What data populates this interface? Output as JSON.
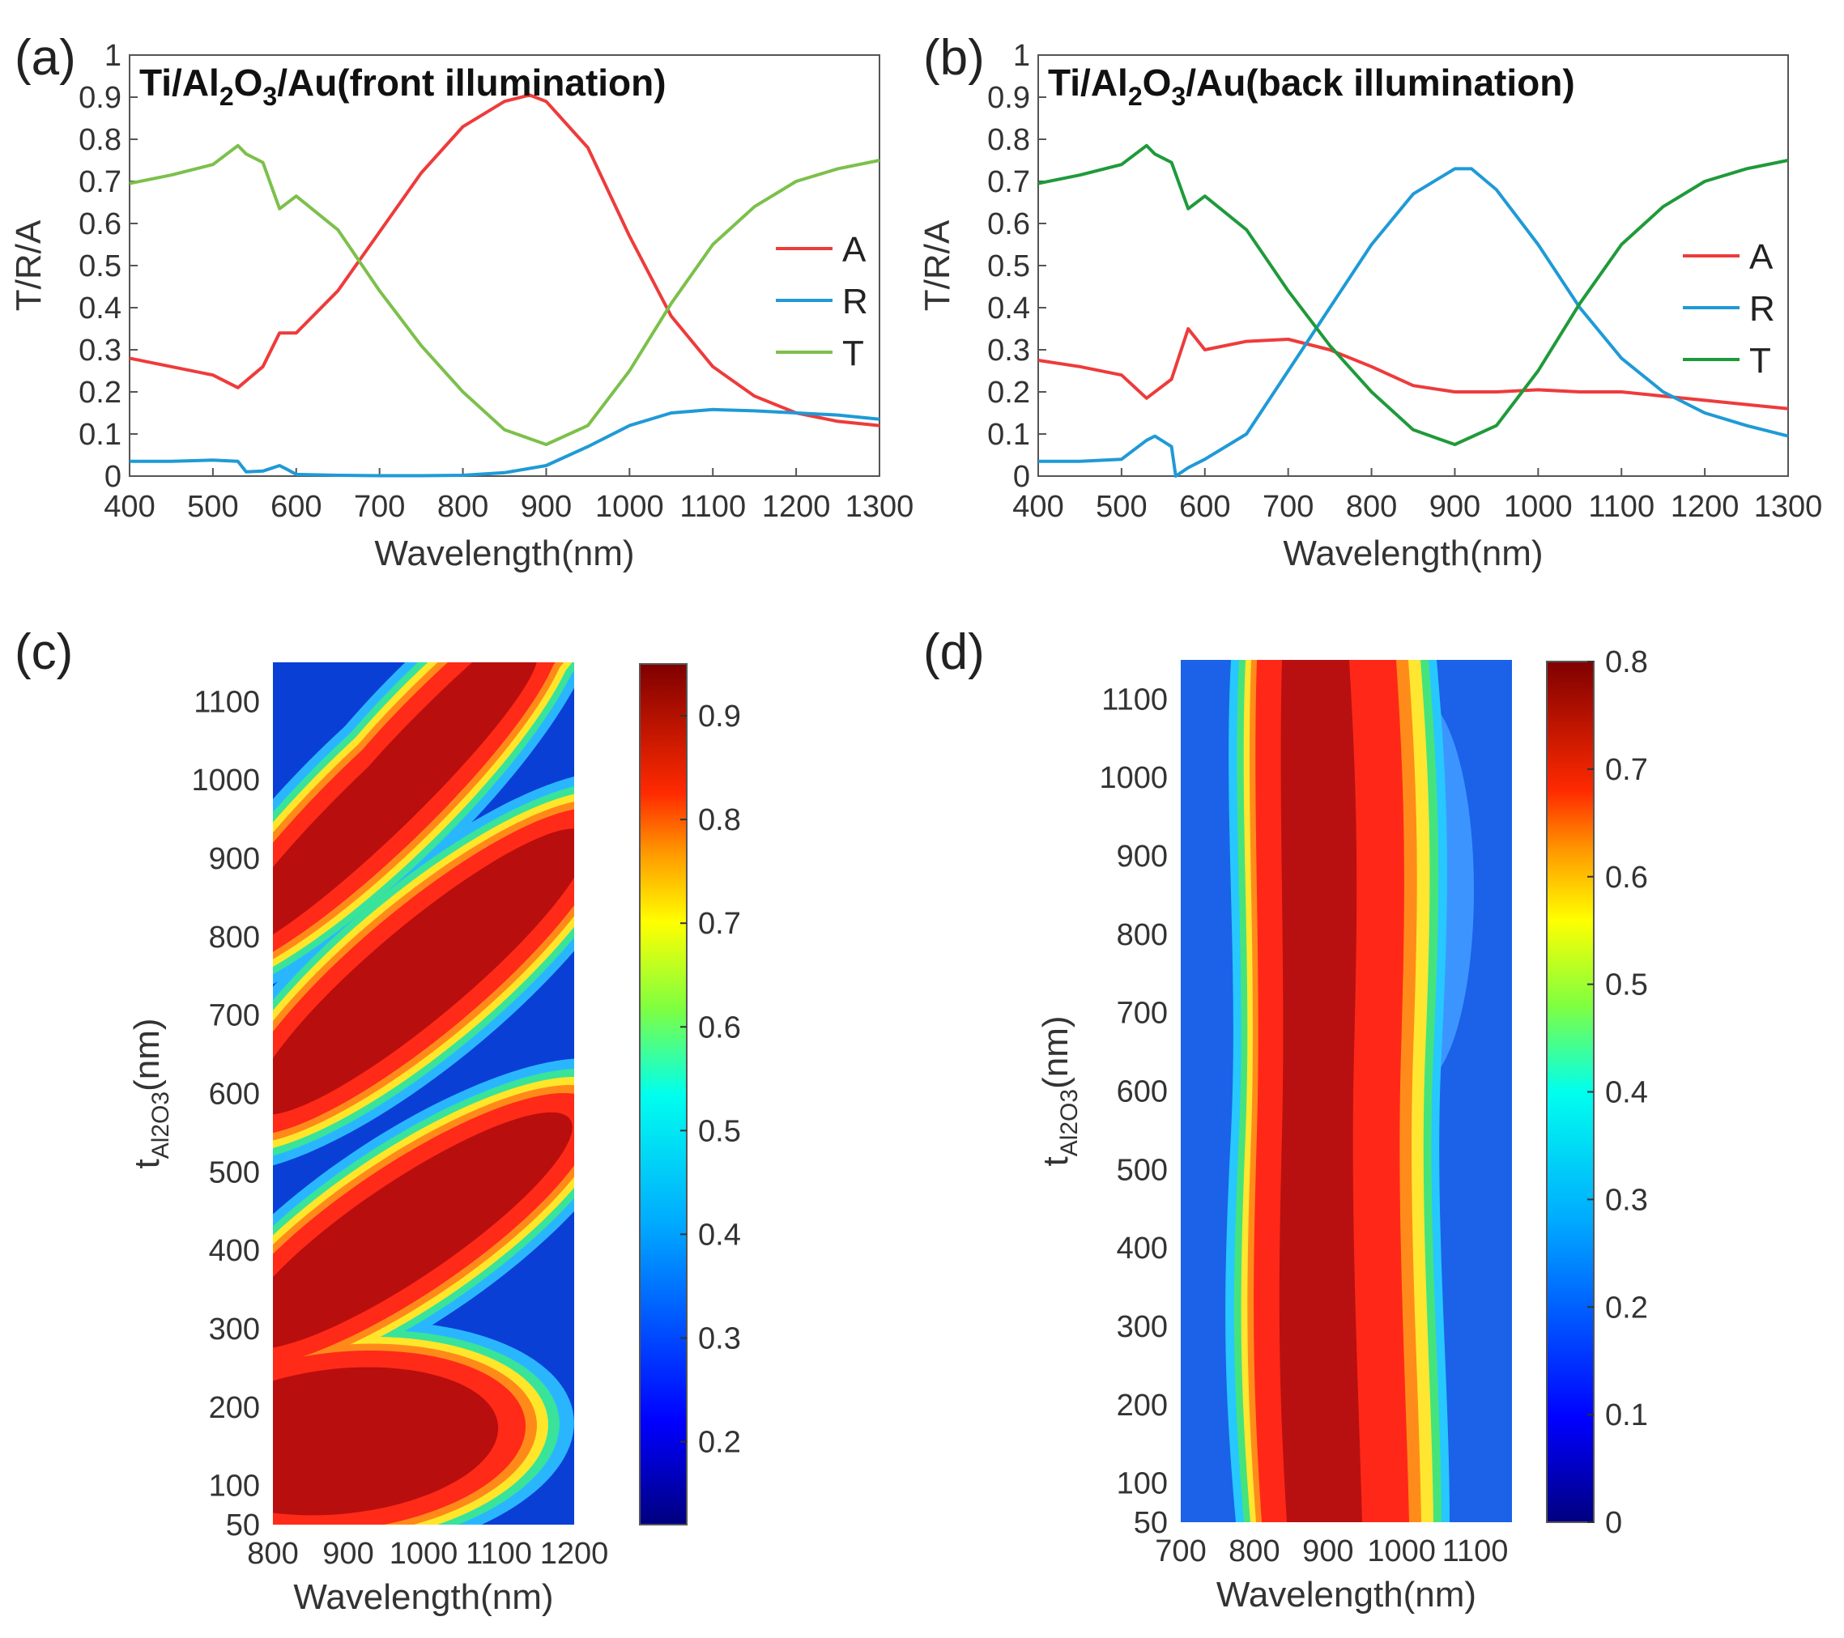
{
  "chart_data": [
    {
      "panel": "(a)",
      "type": "line",
      "title": "Ti/Al2O3/Au(front illumination)",
      "title_parts": {
        "p1": "Ti/Al",
        "s1": "2",
        "p2": "O",
        "s2": "3",
        "p3": "/Au(front illumination)"
      },
      "xlabel": "Wavelength(nm)",
      "ylabel": "T/R/A",
      "xlim": [
        400,
        1300
      ],
      "ylim": [
        0,
        1
      ],
      "xticks": [
        "400",
        "500",
        "600",
        "700",
        "800",
        "900",
        "1000",
        "1100",
        "1200",
        "1300"
      ],
      "yticks": [
        "0",
        "0.1",
        "0.2",
        "0.3",
        "0.4",
        "0.5",
        "0.6",
        "0.7",
        "0.8",
        "0.9",
        "1"
      ],
      "legend": [
        "A",
        "R",
        "T"
      ],
      "colors": {
        "A": "#ee3b3b",
        "R": "#1f9ad6",
        "T": "#7cc04b"
      },
      "series": [
        {
          "name": "A",
          "x": [
            400,
            450,
            500,
            530,
            560,
            580,
            600,
            650,
            700,
            750,
            800,
            850,
            880,
            900,
            950,
            1000,
            1050,
            1100,
            1150,
            1200,
            1250,
            1300
          ],
          "y": [
            0.28,
            0.26,
            0.24,
            0.21,
            0.26,
            0.34,
            0.34,
            0.44,
            0.58,
            0.72,
            0.83,
            0.89,
            0.905,
            0.89,
            0.78,
            0.57,
            0.38,
            0.26,
            0.19,
            0.15,
            0.13,
            0.12
          ]
        },
        {
          "name": "R",
          "x": [
            400,
            450,
            500,
            530,
            540,
            560,
            580,
            590,
            600,
            650,
            700,
            750,
            800,
            850,
            900,
            950,
            1000,
            1050,
            1100,
            1150,
            1200,
            1250,
            1300
          ],
          "y": [
            0.035,
            0.035,
            0.038,
            0.035,
            0.01,
            0.012,
            0.025,
            0.015,
            0.004,
            0.002,
            0.001,
            0.001,
            0.002,
            0.008,
            0.025,
            0.07,
            0.12,
            0.15,
            0.158,
            0.155,
            0.15,
            0.145,
            0.135
          ]
        },
        {
          "name": "T",
          "x": [
            400,
            450,
            500,
            530,
            540,
            560,
            580,
            600,
            650,
            700,
            750,
            800,
            850,
            900,
            950,
            1000,
            1050,
            1100,
            1150,
            1200,
            1250,
            1300
          ],
          "y": [
            0.695,
            0.715,
            0.74,
            0.785,
            0.765,
            0.745,
            0.635,
            0.665,
            0.585,
            0.44,
            0.31,
            0.2,
            0.11,
            0.075,
            0.12,
            0.25,
            0.41,
            0.55,
            0.64,
            0.7,
            0.73,
            0.75
          ]
        }
      ]
    },
    {
      "panel": "(b)",
      "type": "line",
      "title": "Ti/Al2O3/Au(back illumination)",
      "title_parts": {
        "p1": "Ti/Al",
        "s1": "2",
        "p2": "O",
        "s2": "3",
        "p3": "/Au(back illumination)"
      },
      "xlabel": "Wavelength(nm)",
      "ylabel": "T/R/A",
      "xlim": [
        400,
        1300
      ],
      "ylim": [
        0,
        1
      ],
      "xticks": [
        "400",
        "500",
        "600",
        "700",
        "800",
        "900",
        "1000",
        "1100",
        "1200",
        "1300"
      ],
      "yticks": [
        "0",
        "0.1",
        "0.2",
        "0.3",
        "0.4",
        "0.5",
        "0.6",
        "0.7",
        "0.8",
        "0.9",
        "1"
      ],
      "legend": [
        "A",
        "R",
        "T"
      ],
      "colors": {
        "A": "#ee3b3b",
        "R": "#1f9ad6",
        "T": "#1f9a3a"
      },
      "series": [
        {
          "name": "A",
          "x": [
            400,
            450,
            500,
            530,
            560,
            580,
            600,
            650,
            700,
            750,
            800,
            850,
            900,
            950,
            1000,
            1050,
            1100,
            1150,
            1200,
            1250,
            1300
          ],
          "y": [
            0.275,
            0.26,
            0.24,
            0.185,
            0.23,
            0.35,
            0.3,
            0.32,
            0.325,
            0.3,
            0.26,
            0.215,
            0.2,
            0.2,
            0.205,
            0.2,
            0.2,
            0.19,
            0.18,
            0.17,
            0.16
          ]
        },
        {
          "name": "R",
          "x": [
            400,
            450,
            500,
            530,
            540,
            560,
            565,
            580,
            600,
            650,
            700,
            750,
            800,
            850,
            900,
            920,
            950,
            1000,
            1050,
            1100,
            1150,
            1200,
            1250,
            1300
          ],
          "y": [
            0.035,
            0.035,
            0.04,
            0.085,
            0.095,
            0.07,
            0.0,
            0.02,
            0.04,
            0.1,
            0.25,
            0.4,
            0.55,
            0.67,
            0.73,
            0.73,
            0.68,
            0.55,
            0.4,
            0.28,
            0.2,
            0.15,
            0.12,
            0.095
          ]
        },
        {
          "name": "T",
          "x": [
            400,
            450,
            500,
            530,
            540,
            560,
            580,
            600,
            650,
            700,
            750,
            800,
            850,
            900,
            950,
            1000,
            1050,
            1100,
            1150,
            1200,
            1250,
            1300
          ],
          "y": [
            0.695,
            0.715,
            0.74,
            0.785,
            0.765,
            0.745,
            0.635,
            0.665,
            0.585,
            0.44,
            0.31,
            0.2,
            0.11,
            0.075,
            0.12,
            0.25,
            0.41,
            0.55,
            0.64,
            0.7,
            0.73,
            0.75
          ]
        }
      ]
    },
    {
      "panel": "(c)",
      "type": "heatmap",
      "xlabel": "Wavelength(nm)",
      "ylabel_main": "t",
      "ylabel_sub": "Al2O3",
      "ylabel_unit": "(nm)",
      "xlim": [
        800,
        1200
      ],
      "ylim": [
        50,
        1150
      ],
      "xticks": [
        "800",
        "900",
        "1000",
        "1100",
        "1200"
      ],
      "yticks": [
        "50",
        "100",
        "200",
        "300",
        "400",
        "500",
        "600",
        "700",
        "800",
        "900",
        "1000",
        "1100"
      ],
      "colorbar_range": [
        0.12,
        0.95
      ],
      "colorbar_ticks": [
        "0.2",
        "0.3",
        "0.4",
        "0.5",
        "0.6",
        "0.7",
        "0.8",
        "0.9"
      ],
      "description": "Absorption map: diagonal high-absorption bands increasing in thickness with wavelength"
    },
    {
      "panel": "(d)",
      "type": "heatmap",
      "xlabel": "Wavelength(nm)",
      "ylabel_main": "t",
      "ylabel_sub": "Al2O3",
      "ylabel_unit": "(nm)",
      "xlim": [
        700,
        1150
      ],
      "ylim": [
        50,
        1150
      ],
      "xticks": [
        "700",
        "800",
        "900",
        "1000",
        "1100"
      ],
      "yticks": [
        "50",
        "100",
        "200",
        "300",
        "400",
        "500",
        "600",
        "700",
        "800",
        "900",
        "1000",
        "1100"
      ],
      "colorbar_range": [
        0,
        0.8
      ],
      "colorbar_ticks": [
        "0",
        "0.1",
        "0.2",
        "0.3",
        "0.4",
        "0.5",
        "0.6",
        "0.7",
        "0.8"
      ],
      "description": "Reflection map: vertical high band centered near 880 nm for all thicknesses"
    }
  ]
}
